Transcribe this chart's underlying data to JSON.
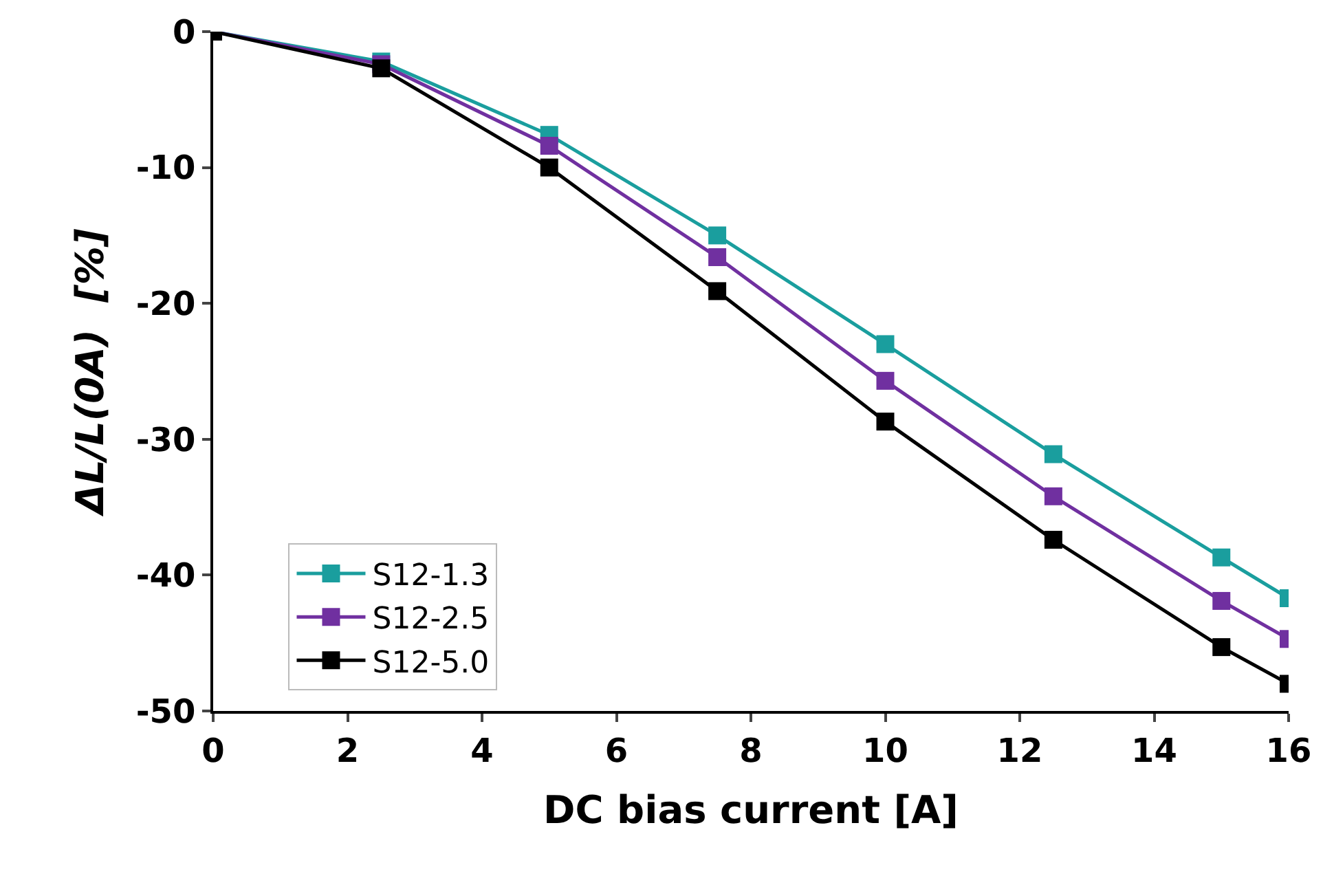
{
  "chart_data": {
    "type": "line",
    "xlabel": "DC bias current [A]",
    "ylabel": "ΔL/L(0A)  [%]",
    "x": [
      0,
      2.5,
      5,
      7.5,
      10,
      12.5,
      15,
      16
    ],
    "series": [
      {
        "name": "S12-1.3",
        "color": "#1a9e9e",
        "values": [
          0,
          -2.2,
          -7.6,
          -15.0,
          -23.0,
          -31.1,
          -38.7,
          -41.7
        ]
      },
      {
        "name": "S12-2.5",
        "color": "#7030a0",
        "values": [
          0,
          -2.4,
          -8.4,
          -16.6,
          -25.7,
          -34.2,
          -41.9,
          -44.7
        ]
      },
      {
        "name": "S12-5.0",
        "color": "#000000",
        "values": [
          0,
          -2.7,
          -10.0,
          -19.1,
          -28.7,
          -37.4,
          -45.3,
          -48.0
        ]
      }
    ],
    "xlim": [
      0,
      16
    ],
    "xticks": [
      0,
      2,
      4,
      6,
      8,
      10,
      12,
      14,
      16
    ],
    "ylim": [
      -50,
      0
    ],
    "yticks": [
      -50,
      -40,
      -30,
      -20,
      -10,
      0
    ],
    "grid": false,
    "legend": "bottom left",
    "marker": "square",
    "line_style": "solid"
  }
}
